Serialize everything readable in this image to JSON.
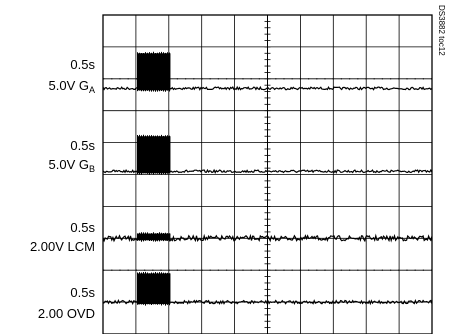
{
  "figure_code": "DS3882 toc12",
  "chart_data": {
    "type": "line",
    "grid": "on",
    "x_divisions": 10,
    "y_divisions": 10,
    "channels": [
      {
        "line1": "0.5s",
        "line2": "5.0V G",
        "sub": "A",
        "burst_amplitude_div": 1.1,
        "burst_time_div": [
          1.05,
          2.05
        ],
        "baseline_noise_div": 0.04
      },
      {
        "line1": "0.5s",
        "line2": "5.0V G",
        "sub": "B",
        "burst_amplitude_div": 1.1,
        "burst_time_div": [
          1.05,
          2.05
        ],
        "baseline_noise_div": 0.04
      },
      {
        "line1": "0.5s",
        "line2": "2.00V LCM",
        "sub": "",
        "burst_amplitude_div": 0.15,
        "burst_time_div": [
          1.05,
          2.05
        ],
        "baseline_noise_div": 0.08
      },
      {
        "line1": "0.5s",
        "line2": "2.00 OVD",
        "sub": "",
        "burst_amplitude_div": 0.9,
        "burst_time_div": [
          1.05,
          2.05
        ],
        "baseline_noise_div": 0.05
      }
    ]
  }
}
